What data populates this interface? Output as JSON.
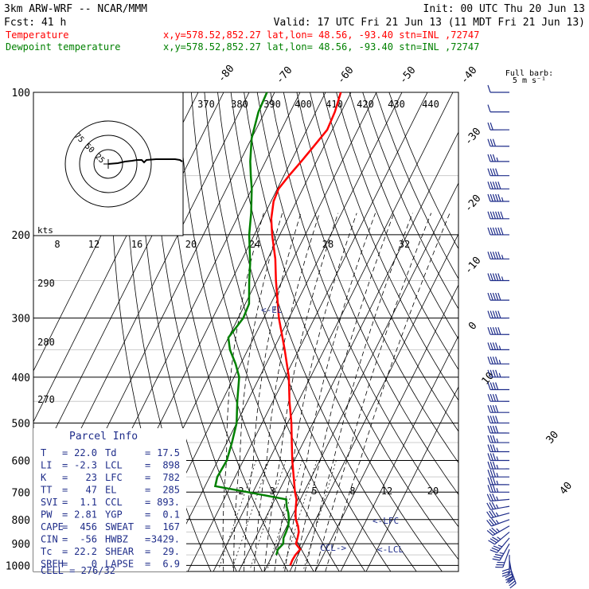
{
  "header": {
    "line1_left": "3km ARW-WRF -- NCAR/MMM",
    "line1_right": "Init: 00 UTC Thu 20 Jun 13",
    "line2_left": "Fcst:   41 h",
    "line2_right": "Valid: 17 UTC Fri 21 Jun 13 (11 MDT Fri 21 Jun 13)",
    "temp_label": "Temperature",
    "dew_label": "Dewpoint temperature",
    "temp_loc": "x,y=578.52,852.27   lat,lon= 48.56, -93.40   stn=INL ,72747",
    "dew_loc": "x,y=578.52,852.27   lat,lon= 48.56, -93.40   stn=INL ,72747",
    "temp_color": "#ff0000",
    "dew_color": "#008000"
  },
  "barb_key": {
    "line1": "Full barb:",
    "line2": "5 m s⁻¹"
  },
  "hodograph": {
    "units": "kts",
    "ring_labels": [
      "25",
      "50",
      "75"
    ]
  },
  "parcel_info": {
    "title": "Parcel Info",
    "rows": [
      {
        "k1": "T",
        "v1": "22.0",
        "k2": "Td",
        "v2": "17.5"
      },
      {
        "k1": "LI",
        "v1": "-2.3",
        "k2": "LCL",
        "v2": "898"
      },
      {
        "k1": "K",
        "v1": "23",
        "k2": "LFC",
        "v2": "782"
      },
      {
        "k1": "TT",
        "v1": "47",
        "k2": "EL",
        "v2": "285"
      },
      {
        "k1": "SVI",
        "v1": "1.1",
        "k2": "CCL",
        "v2": "893."
      },
      {
        "k1": "PW",
        "v1": "2.81",
        "k2": "YGP",
        "v2": "0.1"
      },
      {
        "k1": "CAPE",
        "v1": "456",
        "k2": "SWEAT",
        "v2": "167"
      },
      {
        "k1": "CIN",
        "v1": "-56",
        "k2": "HWBZ",
        "v2": "3429."
      },
      {
        "k1": "Tc",
        "v1": "22.2",
        "k2": "SHEAR",
        "v2": "29."
      },
      {
        "k1": "SREH",
        "v1": "0",
        "k2": "LAPSE",
        "v2": "6.9"
      }
    ],
    "cell": "CELL = 276/32"
  },
  "annotations": {
    "el": "<-EL",
    "lfc": "<-LFC",
    "lcl": "<-LCL",
    "ccl": "CCL->"
  },
  "chart_data": {
    "type": "line",
    "pressure_ticks": [
      100,
      200,
      300,
      400,
      500,
      600,
      700,
      800,
      900,
      1000
    ],
    "isotherm_labels_top": [
      "-80",
      "-70",
      "-60",
      "-50",
      "-40"
    ],
    "isotherm_labels_right": [
      "-30",
      "-20",
      "-10",
      "0",
      "10",
      "30",
      "40"
    ],
    "theta_labels": [
      "370",
      "380",
      "390",
      "400",
      "410",
      "420",
      "430",
      "440"
    ],
    "mixing_ratio_labels": [
      "8",
      "12",
      "16",
      "20",
      "24",
      "28",
      "32"
    ],
    "mixing_ratio_labels_low": [
      "2",
      "3",
      "5",
      "8",
      "12",
      "20"
    ],
    "theta_e_left_labels": [
      "290",
      "280",
      "270"
    ],
    "series": [
      {
        "name": "Temperature",
        "points": [
          [
            1000,
            19.0
          ],
          [
            975,
            18.8
          ],
          [
            950,
            19.0
          ],
          [
            925,
            19.8
          ],
          [
            900,
            17.0
          ],
          [
            875,
            16.5
          ],
          [
            850,
            15.8
          ],
          [
            825,
            14.3
          ],
          [
            800,
            12.2
          ],
          [
            775,
            10.8
          ],
          [
            750,
            9.6
          ],
          [
            725,
            8.5
          ],
          [
            700,
            6.5
          ],
          [
            650,
            3.0
          ],
          [
            600,
            -0.8
          ],
          [
            550,
            -4.5
          ],
          [
            500,
            -8.5
          ],
          [
            450,
            -13.5
          ],
          [
            400,
            -18.5
          ],
          [
            350,
            -25.5
          ],
          [
            300,
            -34.0
          ],
          [
            250,
            -42.5
          ],
          [
            225,
            -47.0
          ],
          [
            200,
            -53.0
          ],
          [
            185,
            -56.5
          ],
          [
            170,
            -59.0
          ],
          [
            160,
            -59.5
          ],
          [
            150,
            -58.0
          ],
          [
            140,
            -56.0
          ],
          [
            130,
            -54.0
          ],
          [
            120,
            -52.0
          ],
          [
            110,
            -52.5
          ],
          [
            100,
            -54.0
          ]
        ]
      },
      {
        "name": "Dewpoint temperature",
        "points": [
          [
            950,
            11.5
          ],
          [
            925,
            11.0
          ],
          [
            900,
            12.0
          ],
          [
            875,
            11.0
          ],
          [
            850,
            10.8
          ],
          [
            825,
            10.5
          ],
          [
            800,
            9.5
          ],
          [
            775,
            8.0
          ],
          [
            750,
            6.0
          ],
          [
            725,
            4.5
          ],
          [
            700,
            -12.0
          ],
          [
            680,
            -26.0
          ],
          [
            650,
            -27.0
          ],
          [
            600,
            -26.5
          ],
          [
            550,
            -28.0
          ],
          [
            500,
            -30.0
          ],
          [
            450,
            -34.0
          ],
          [
            400,
            -38.0
          ],
          [
            375,
            -42.0
          ],
          [
            350,
            -47.0
          ],
          [
            330,
            -50.0
          ],
          [
            300,
            -48.0
          ],
          [
            280,
            -48.5
          ],
          [
            250,
            -53.0
          ],
          [
            230,
            -56.0
          ],
          [
            200,
            -62.0
          ],
          [
            180,
            -65.5
          ],
          [
            160,
            -70.0
          ],
          [
            150,
            -73.0
          ],
          [
            140,
            -76.0
          ],
          [
            125,
            -80.0
          ],
          [
            110,
            -82.5
          ],
          [
            100,
            -83.0
          ]
        ]
      }
    ],
    "wind_barbs": [
      [
        1000,
        160,
        20
      ],
      [
        975,
        170,
        18
      ],
      [
        950,
        180,
        16
      ],
      [
        925,
        200,
        16
      ],
      [
        900,
        210,
        18
      ],
      [
        875,
        220,
        18
      ],
      [
        850,
        230,
        18
      ],
      [
        825,
        240,
        18
      ],
      [
        800,
        250,
        18
      ],
      [
        775,
        255,
        18
      ],
      [
        750,
        260,
        18
      ],
      [
        725,
        265,
        18
      ],
      [
        700,
        270,
        18
      ],
      [
        675,
        270,
        18
      ],
      [
        650,
        270,
        18
      ],
      [
        625,
        270,
        18
      ],
      [
        600,
        270,
        18
      ],
      [
        575,
        270,
        18
      ],
      [
        550,
        270,
        18
      ],
      [
        525,
        270,
        20
      ],
      [
        500,
        270,
        20
      ],
      [
        475,
        270,
        22
      ],
      [
        450,
        270,
        22
      ],
      [
        425,
        270,
        22
      ],
      [
        400,
        270,
        24
      ],
      [
        375,
        270,
        24
      ],
      [
        350,
        270,
        24
      ],
      [
        325,
        270,
        26
      ],
      [
        300,
        270,
        26
      ],
      [
        275,
        270,
        26
      ],
      [
        250,
        270,
        28
      ],
      [
        225,
        270,
        28
      ],
      [
        200,
        270,
        30
      ],
      [
        185,
        270,
        30
      ],
      [
        170,
        270,
        28
      ],
      [
        160,
        270,
        26
      ],
      [
        150,
        270,
        22
      ],
      [
        140,
        270,
        18
      ],
      [
        130,
        270,
        16
      ],
      [
        120,
        270,
        10
      ],
      [
        110,
        270,
        6
      ],
      [
        100,
        270,
        6
      ]
    ],
    "hodograph_points_kts": [
      [
        0,
        0
      ],
      [
        4,
        -1
      ],
      [
        7,
        -3
      ],
      [
        10,
        -4
      ],
      [
        12,
        -5
      ],
      [
        14,
        -5
      ],
      [
        15,
        -2
      ],
      [
        16,
        -5
      ],
      [
        20,
        -6
      ],
      [
        24,
        -6
      ],
      [
        28,
        -6
      ],
      [
        30,
        -5
      ],
      [
        31,
        -3
      ]
    ]
  }
}
